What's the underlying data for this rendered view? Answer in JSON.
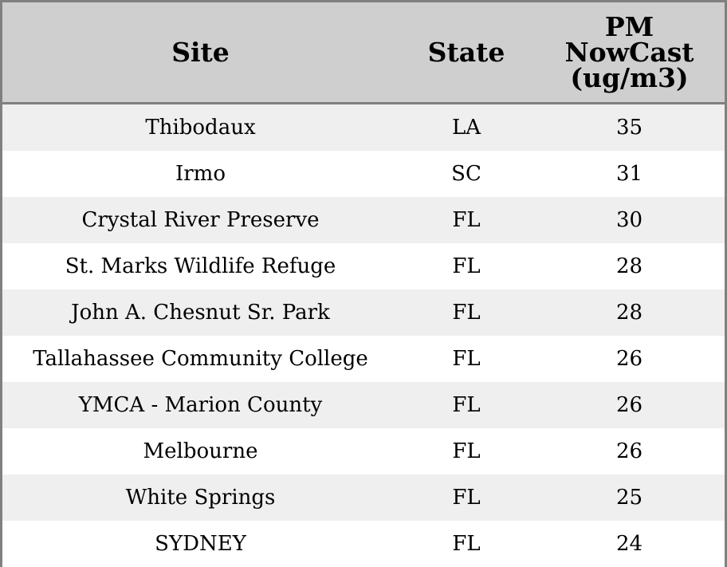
{
  "chart_data": {
    "type": "table",
    "columns": [
      "Site",
      "State",
      "PM NowCast (ug/m3)"
    ],
    "rows": [
      {
        "site": "Thibodaux",
        "state": "LA",
        "pm": "35"
      },
      {
        "site": "Irmo",
        "state": "SC",
        "pm": "31"
      },
      {
        "site": "Crystal River Preserve",
        "state": "FL",
        "pm": "30"
      },
      {
        "site": "St. Marks Wildlife Refuge",
        "state": "FL",
        "pm": "28"
      },
      {
        "site": "John A. Chesnut Sr. Park",
        "state": "FL",
        "pm": "28"
      },
      {
        "site": "Tallahassee Community College",
        "state": "FL",
        "pm": "26"
      },
      {
        "site": "YMCA - Marion County",
        "state": "FL",
        "pm": "26"
      },
      {
        "site": "Melbourne",
        "state": "FL",
        "pm": "26"
      },
      {
        "site": "White Springs",
        "state": "FL",
        "pm": "25"
      },
      {
        "site": "SYDNEY",
        "state": "FL",
        "pm": "24"
      }
    ]
  },
  "header": {
    "site": "Site",
    "state": "State",
    "pm_line1": "PM",
    "pm_line2": "NowCast",
    "pm_line3": "(ug/m3)"
  },
  "colors": {
    "header_bg": "#cfcfcf",
    "stripe_bg": "#efefef",
    "border": "#808080"
  }
}
